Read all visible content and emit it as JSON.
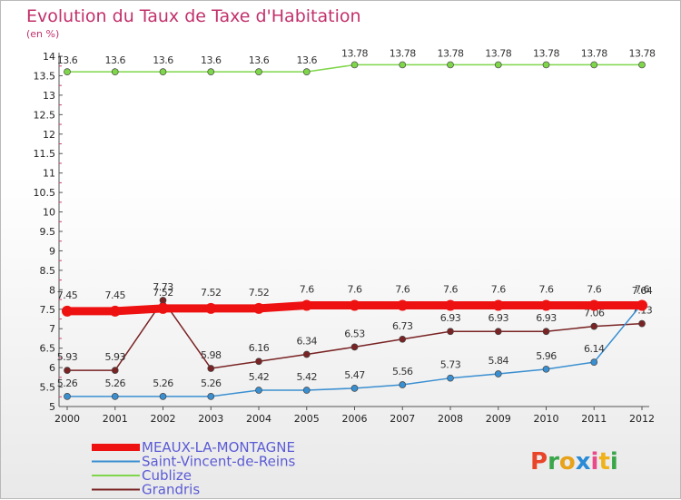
{
  "chart_data": {
    "type": "line",
    "title": "Evolution du Taux de Taxe d'Habitation",
    "unit_label": "(en %)",
    "x": [
      "2000",
      "2001",
      "2002",
      "2003",
      "2004",
      "2005",
      "2006",
      "2007",
      "2008",
      "2009",
      "2010",
      "2011",
      "2012"
    ],
    "ylim": [
      5,
      14
    ],
    "y_ticks": [
      "5",
      "5.5",
      "6",
      "6.5",
      "7",
      "7.5",
      "8",
      "8.5",
      "9",
      "9.5",
      "10",
      "10.5",
      "11",
      "11.5",
      "12",
      "12.5",
      "13",
      "13.5",
      "14"
    ],
    "grid": false,
    "legend_position": "bottom-left",
    "series": [
      {
        "name": "MEAUX-LA-MONTAGNE",
        "color": "#ee1111",
        "values": [
          7.45,
          7.45,
          7.52,
          7.52,
          7.52,
          7.6,
          7.6,
          7.6,
          7.6,
          7.6,
          7.6,
          7.6,
          7.6
        ],
        "labels": [
          "7.45",
          "7.45",
          "7.52",
          "7.52",
          "7.52",
          "7.6",
          "7.6",
          "7.6",
          "7.6",
          "7.6",
          "7.6",
          "7.6",
          "7.6"
        ]
      },
      {
        "name": "Saint-Vincent-de-Reins",
        "color": "#3a8fd1",
        "values": [
          5.26,
          5.26,
          5.26,
          5.26,
          5.42,
          5.42,
          5.47,
          5.56,
          5.73,
          5.84,
          5.96,
          6.14,
          7.64
        ],
        "labels": [
          "5.26",
          "5.26",
          "5.26",
          "5.26",
          "5.42",
          "5.42",
          "5.47",
          "5.56",
          "5.73",
          "5.84",
          "5.96",
          "6.14",
          "7.64"
        ]
      },
      {
        "name": "Cublize",
        "color": "#7fd64a",
        "values": [
          13.6,
          13.6,
          13.6,
          13.6,
          13.6,
          13.6,
          13.78,
          13.78,
          13.78,
          13.78,
          13.78,
          13.78,
          13.78
        ],
        "labels": [
          "13.6",
          "13.6",
          "13.6",
          "13.6",
          "13.6",
          "13.6",
          "13.78",
          "13.78",
          "13.78",
          "13.78",
          "13.78",
          "13.78",
          "13.78"
        ]
      },
      {
        "name": "Grandris",
        "color": "#7a2324",
        "values": [
          5.93,
          5.93,
          7.73,
          5.98,
          6.16,
          6.34,
          6.53,
          6.73,
          6.93,
          6.93,
          6.93,
          7.06,
          7.13
        ],
        "labels": [
          "5.93",
          "5.93",
          "7.73",
          "5.98",
          "6.16",
          "6.34",
          "6.53",
          "6.73",
          "6.93",
          "6.93",
          "6.93",
          "7.06",
          "7.13"
        ]
      }
    ]
  },
  "logo": {
    "text": "Proxiti",
    "letter_colors": [
      "#e8452a",
      "#3aa64a",
      "#e8a21a",
      "#2a8bd6",
      "#e84a8a",
      "#f0b21a",
      "#3aa64a"
    ]
  }
}
